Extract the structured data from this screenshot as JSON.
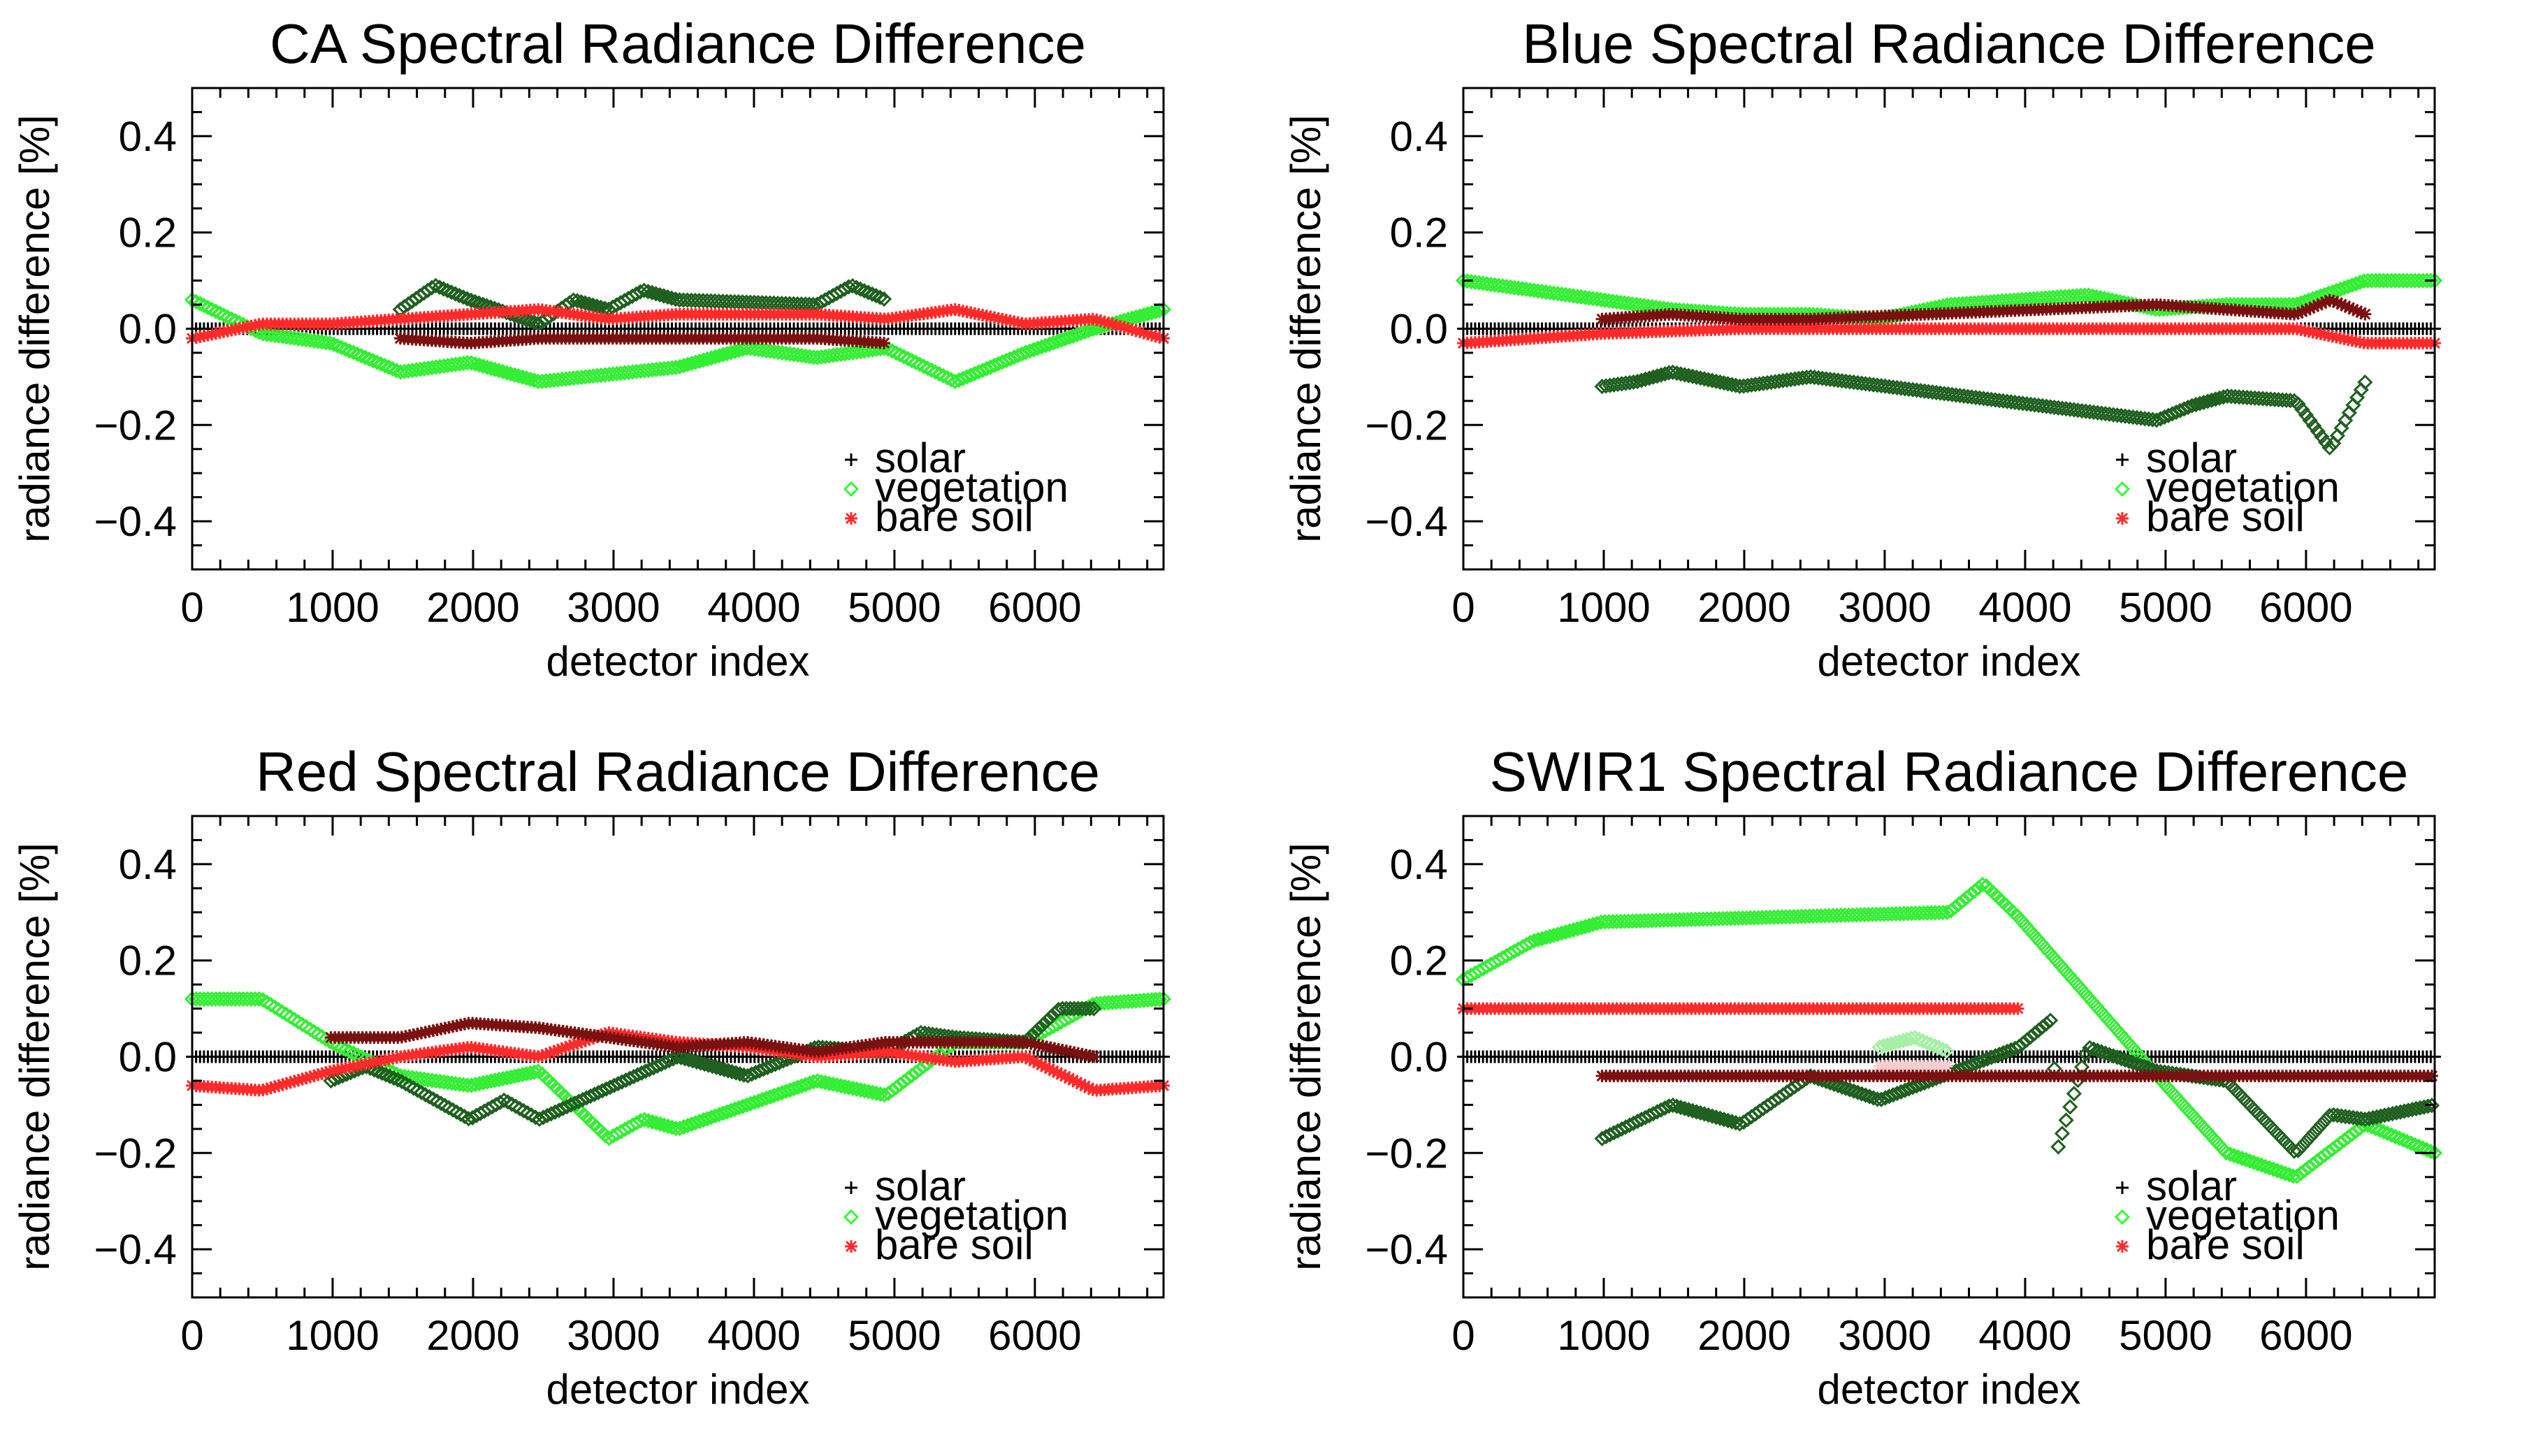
{
  "legend": [
    {
      "label": "solar",
      "marker": "plus",
      "color": "#000000"
    },
    {
      "label": "vegetation",
      "marker": "diamond",
      "color": "#33ff33"
    },
    {
      "label": "bare soil",
      "marker": "asterisk",
      "color": "#ff2a2a"
    }
  ],
  "colors": {
    "solar": "#000000",
    "vegetation": "#33ee33",
    "vegetation_dark": "#1f5f1f",
    "bare_soil": "#ff2a2a",
    "bare_soil_dark": "#7a1010",
    "vegetation_light": "#a6f0a6",
    "bare_soil_light": "#f8cccc"
  },
  "chart_data": [
    {
      "type": "scatter",
      "title": "CA Spectral Radiance Difference",
      "xlabel": "detector index",
      "ylabel": "radiance difference [%]",
      "xlim": [
        0,
        6916
      ],
      "ylim": [
        -0.5,
        0.5
      ],
      "xticks": [
        "0",
        "1000",
        "2000",
        "3000",
        "4000",
        "5000",
        "6000"
      ],
      "yticks": [
        "−0.4",
        "−0.2",
        "0.0",
        "0.2",
        "0.4"
      ],
      "series": [
        {
          "name": "solar",
          "color": "#000000",
          "marker": "plus",
          "x": [
            0,
            6916
          ],
          "values": [
            0.0,
            0.0
          ]
        },
        {
          "name": "vegetation",
          "color": "#33ee33",
          "marker": "diamond",
          "x": [
            0,
            494,
            988,
            1482,
            1976,
            2470,
            3458,
            3952,
            4446,
            4940,
            5434,
            5928,
            6422,
            6916
          ],
          "values": [
            0.06,
            -0.01,
            -0.03,
            -0.09,
            -0.07,
            -0.11,
            -0.08,
            -0.04,
            -0.06,
            -0.04,
            -0.11,
            -0.05,
            0.0,
            0.04
          ]
        },
        {
          "name": "vegetation (dark)",
          "color": "#1f5f1f",
          "marker": "diamond",
          "x": [
            1482,
            1729,
            1976,
            2470,
            2717,
            2964,
            3211,
            3458,
            4446,
            4693,
            4940
          ],
          "values": [
            0.04,
            0.09,
            0.06,
            0.01,
            0.06,
            0.04,
            0.08,
            0.06,
            0.05,
            0.09,
            0.06
          ]
        },
        {
          "name": "bare soil",
          "color": "#ff2a2a",
          "marker": "asterisk",
          "x": [
            0,
            494,
            988,
            1482,
            1976,
            2470,
            2964,
            3458,
            3952,
            4446,
            4940,
            5434,
            5928,
            6422,
            6916
          ],
          "values": [
            -0.02,
            0.01,
            0.01,
            0.02,
            0.03,
            0.04,
            0.02,
            0.03,
            0.03,
            0.03,
            0.02,
            0.04,
            0.01,
            0.02,
            -0.02
          ]
        },
        {
          "name": "bare soil (dark)",
          "color": "#7a1010",
          "marker": "asterisk",
          "x": [
            1482,
            1976,
            2470,
            2964,
            3458,
            4446,
            4940
          ],
          "values": [
            -0.02,
            -0.03,
            -0.02,
            -0.02,
            -0.02,
            -0.02,
            -0.03
          ]
        }
      ]
    },
    {
      "type": "scatter",
      "title": "Blue Spectral Radiance Difference",
      "xlabel": "detector index",
      "ylabel": "radiance difference [%]",
      "xlim": [
        0,
        6916
      ],
      "ylim": [
        -0.5,
        0.5
      ],
      "xticks": [
        "0",
        "1000",
        "2000",
        "3000",
        "4000",
        "5000",
        "6000"
      ],
      "yticks": [
        "−0.4",
        "−0.2",
        "0.0",
        "0.2",
        "0.4"
      ],
      "series": [
        {
          "name": "solar",
          "color": "#000000",
          "marker": "plus",
          "x": [
            0,
            6916
          ],
          "values": [
            0.0,
            0.0
          ]
        },
        {
          "name": "vegetation",
          "color": "#33ee33",
          "marker": "diamond",
          "x": [
            0,
            494,
            988,
            1482,
            1976,
            2470,
            2964,
            3458,
            3952,
            4446,
            4940,
            5434,
            5928,
            6422,
            6916
          ],
          "values": [
            0.1,
            0.08,
            0.06,
            0.04,
            0.03,
            0.03,
            0.02,
            0.05,
            0.06,
            0.07,
            0.04,
            0.05,
            0.05,
            0.1,
            0.1
          ]
        },
        {
          "name": "vegetation (dark)",
          "color": "#1f5f1f",
          "marker": "diamond",
          "x": [
            988,
            1235,
            1482,
            1976,
            2223,
            2470,
            4940,
            5187,
            5434,
            5928,
            6175,
            6422
          ],
          "values": [
            -0.12,
            -0.11,
            -0.09,
            -0.12,
            -0.11,
            -0.1,
            -0.19,
            -0.16,
            -0.14,
            -0.15,
            -0.25,
            -0.11
          ]
        },
        {
          "name": "bare soil",
          "color": "#ff2a2a",
          "marker": "asterisk",
          "x": [
            0,
            988,
            1976,
            2964,
            3952,
            4940,
            5928,
            6422,
            6916
          ],
          "values": [
            -0.03,
            -0.01,
            0.0,
            0.0,
            0.0,
            0.0,
            0.0,
            -0.03,
            -0.03
          ]
        },
        {
          "name": "bare soil (dark)",
          "color": "#7a1010",
          "marker": "asterisk",
          "x": [
            988,
            1482,
            1976,
            2470,
            4940,
            5434,
            5928,
            6175,
            6422
          ],
          "values": [
            0.02,
            0.03,
            0.02,
            0.02,
            0.05,
            0.04,
            0.03,
            0.06,
            0.03
          ]
        }
      ]
    },
    {
      "type": "scatter",
      "title": "Red Spectral Radiance Difference",
      "xlabel": "detector index",
      "ylabel": "radiance difference [%]",
      "xlim": [
        0,
        6916
      ],
      "ylim": [
        -0.5,
        0.5
      ],
      "xticks": [
        "0",
        "1000",
        "2000",
        "3000",
        "4000",
        "5000",
        "6000"
      ],
      "yticks": [
        "−0.4",
        "−0.2",
        "0.0",
        "0.2",
        "0.4"
      ],
      "series": [
        {
          "name": "solar",
          "color": "#000000",
          "marker": "plus",
          "x": [
            0,
            6916
          ],
          "values": [
            0.0,
            0.0
          ]
        },
        {
          "name": "vegetation",
          "color": "#33ee33",
          "marker": "diamond",
          "x": [
            0,
            494,
            988,
            1482,
            1976,
            2470,
            2964,
            3211,
            3458,
            4446,
            4940,
            5434,
            5928,
            6422,
            6916
          ],
          "values": [
            0.12,
            0.12,
            0.03,
            -0.04,
            -0.06,
            -0.03,
            -0.17,
            -0.13,
            -0.15,
            -0.05,
            -0.08,
            0.03,
            0.03,
            0.11,
            0.12
          ]
        },
        {
          "name": "vegetation (dark)",
          "color": "#1f5f1f",
          "marker": "diamond",
          "x": [
            988,
            1235,
            1482,
            1976,
            2223,
            2470,
            3458,
            3952,
            4446,
            4940,
            5187,
            5434,
            5928,
            6175,
            6422
          ],
          "values": [
            -0.05,
            -0.02,
            -0.05,
            -0.13,
            -0.09,
            -0.13,
            0.0,
            -0.04,
            0.02,
            0.01,
            0.05,
            0.04,
            0.03,
            0.1,
            0.1
          ]
        },
        {
          "name": "bare soil",
          "color": "#ff2a2a",
          "marker": "asterisk",
          "x": [
            0,
            494,
            988,
            1482,
            1976,
            2470,
            2964,
            3458,
            3952,
            4446,
            4940,
            5434,
            5928,
            6422,
            6916
          ],
          "values": [
            -0.06,
            -0.07,
            -0.03,
            0.0,
            0.02,
            0.0,
            0.05,
            0.03,
            0.02,
            0.0,
            0.01,
            -0.01,
            0.0,
            -0.07,
            -0.06
          ]
        },
        {
          "name": "bare soil (dark)",
          "color": "#7a1010",
          "marker": "asterisk",
          "x": [
            988,
            1482,
            1976,
            2470,
            3458,
            3952,
            4446,
            4940,
            5434,
            5928,
            6422
          ],
          "values": [
            0.04,
            0.04,
            0.07,
            0.06,
            0.02,
            0.03,
            0.01,
            0.03,
            0.03,
            0.03,
            0.0
          ]
        }
      ]
    },
    {
      "type": "scatter",
      "title": "SWIR1 Spectral Radiance Difference",
      "xlabel": "detector index",
      "ylabel": "radiance difference [%]",
      "xlim": [
        0,
        6916
      ],
      "ylim": [
        -0.5,
        0.5
      ],
      "xticks": [
        "0",
        "1000",
        "2000",
        "3000",
        "4000",
        "5000",
        "6000"
      ],
      "yticks": [
        "−0.4",
        "−0.2",
        "0.0",
        "0.2",
        "0.4"
      ],
      "series": [
        {
          "name": "solar",
          "color": "#000000",
          "marker": "plus",
          "x": [
            0,
            6916
          ],
          "values": [
            0.0,
            0.0
          ]
        },
        {
          "name": "vegetation",
          "color": "#33ee33",
          "marker": "diamond",
          "x": [
            0,
            494,
            988,
            3458,
            3705,
            3952,
            4940,
            5434,
            5928,
            6422,
            6916
          ],
          "values": [
            0.16,
            0.24,
            0.28,
            0.3,
            0.36,
            0.29,
            -0.04,
            -0.2,
            -0.25,
            -0.14,
            -0.2
          ]
        },
        {
          "name": "vegetation (light)",
          "color": "#a6f0a6",
          "marker": "diamond",
          "x": [
            2964,
            3211,
            3458
          ],
          "values": [
            0.02,
            0.04,
            0.01
          ]
        },
        {
          "name": "vegetation (dark)",
          "color": "#1f5f1f",
          "marker": "diamond",
          "x": [
            988,
            1482,
            1976,
            2470,
            2964,
            3952,
            4199,
            4223,
            4446,
            4940,
            5434,
            5928,
            6175,
            6422,
            6916
          ],
          "values": [
            -0.17,
            -0.1,
            -0.14,
            -0.04,
            -0.09,
            0.02,
            0.08,
            -0.2,
            0.02,
            -0.03,
            -0.05,
            -0.2,
            -0.12,
            -0.13,
            -0.1
          ]
        },
        {
          "name": "bare soil",
          "color": "#ff2a2a",
          "marker": "asterisk",
          "x": [
            0,
            988,
            3458,
            3952
          ],
          "values": [
            0.1,
            0.1,
            0.1,
            0.1
          ]
        },
        {
          "name": "bare soil (light)",
          "color": "#f8cccc",
          "marker": "asterisk",
          "x": [
            2964,
            3458
          ],
          "values": [
            -0.02,
            -0.02
          ]
        },
        {
          "name": "bare soil (dark)",
          "color": "#7a1010",
          "marker": "asterisk",
          "x": [
            988,
            2964,
            3952,
            4940,
            5928,
            6916
          ],
          "values": [
            -0.04,
            -0.04,
            -0.04,
            -0.04,
            -0.04,
            -0.04
          ]
        }
      ]
    }
  ]
}
